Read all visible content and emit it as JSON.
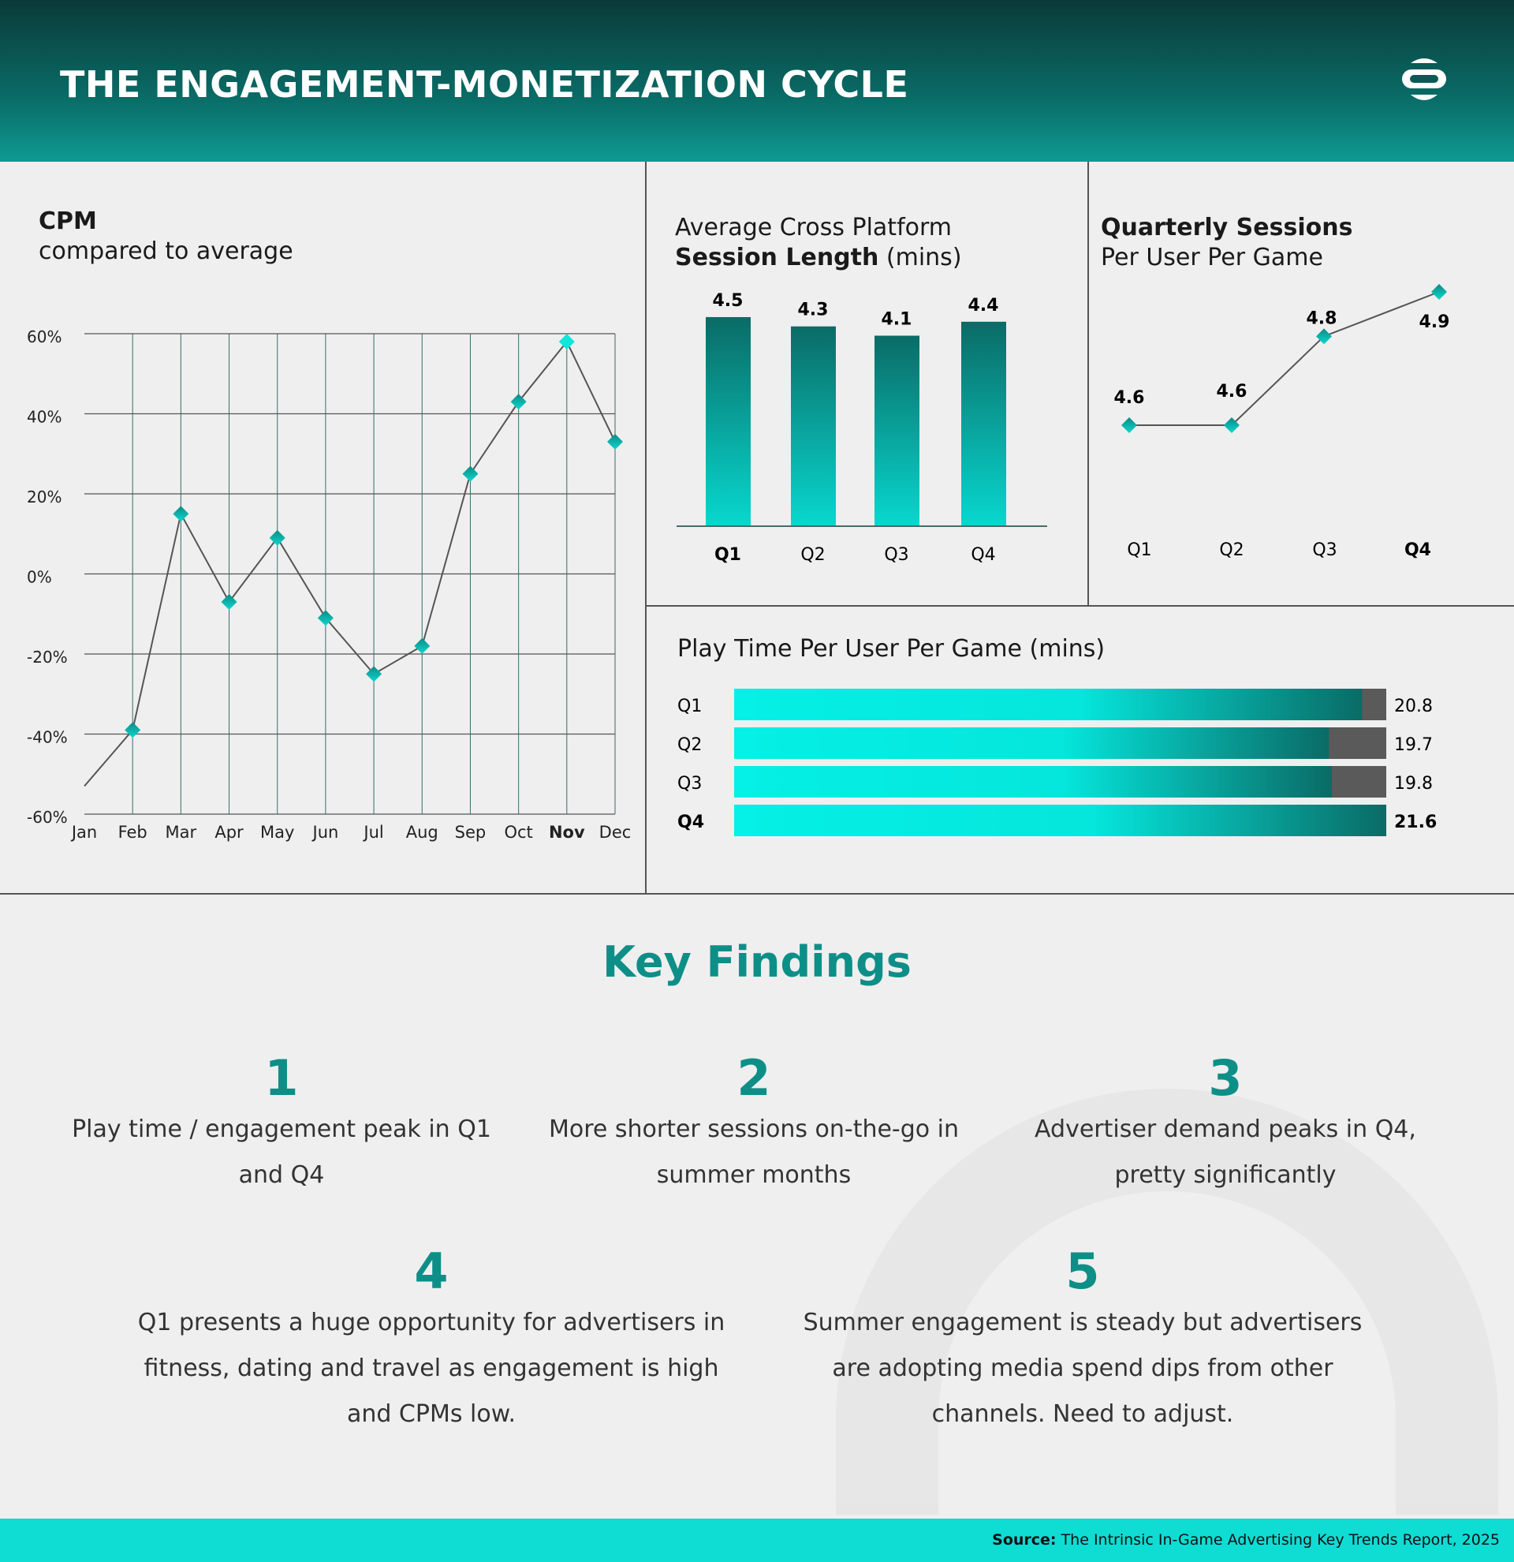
{
  "header": {
    "title": "THE ENGAGEMENT-MONETIZATION CYCLE",
    "logo_icon": "brand-logo-icon"
  },
  "colors": {
    "accent": "#0d8f88",
    "bar_light": "#05f0e6",
    "bar_dark": "#0a6b66",
    "track": "#5a5a5a",
    "header_dark": "#0a3a38"
  },
  "chart_data": [
    {
      "type": "line",
      "title": "CPM",
      "subtitle": "compared to average",
      "categories": [
        "Jan",
        "Feb",
        "Mar",
        "Apr",
        "May",
        "Jun",
        "Jul",
        "Aug",
        "Sep",
        "Oct",
        "Nov",
        "Dec"
      ],
      "values": [
        -53,
        -39,
        15,
        -7,
        9,
        -11,
        -25,
        -18,
        25,
        43,
        58,
        33
      ],
      "yticks": [
        "60%",
        "40%",
        "20%",
        "0%",
        "-20%",
        "-40%",
        "-60%"
      ],
      "ylim": [
        -60,
        60
      ],
      "highlight": "Nov",
      "grid": true
    },
    {
      "type": "bar",
      "title_plain": "Average Cross Platform",
      "title_bold": "Session Length",
      "title_unit": "(mins)",
      "categories": [
        "Q1",
        "Q2",
        "Q3",
        "Q4"
      ],
      "values": [
        4.5,
        4.3,
        4.1,
        4.4
      ],
      "labels": [
        "4.5",
        "4.3",
        "4.1",
        "4.4"
      ],
      "highlight": "Q1"
    },
    {
      "type": "line",
      "title_bold": "Quarterly Sessions",
      "title_plain": "Per User Per Game",
      "categories": [
        "Q1",
        "Q2",
        "Q3",
        "Q4"
      ],
      "values": [
        4.6,
        4.6,
        4.8,
        4.9
      ],
      "labels": [
        "4.6",
        "4.6",
        "4.8",
        "4.9"
      ],
      "highlight": "Q4"
    },
    {
      "type": "bar",
      "orientation": "horizontal",
      "title": "Play Time Per User Per Game (mins)",
      "categories": [
        "Q1",
        "Q2",
        "Q3",
        "Q4"
      ],
      "values": [
        20.8,
        19.7,
        19.8,
        21.6
      ],
      "labels": [
        "20.8",
        "19.7",
        "19.8",
        "21.6"
      ],
      "xmax": 21.6,
      "highlight": "Q4"
    }
  ],
  "findings": {
    "title": "Key Findings",
    "items": [
      {
        "num": "1",
        "text": "Play time / engagement peak in Q1 and Q4"
      },
      {
        "num": "2",
        "text": "More shorter sessions on-the-go in summer months"
      },
      {
        "num": "3",
        "text": "Advertiser demand peaks in Q4, pretty significantly"
      },
      {
        "num": "4",
        "text": "Q1 presents a huge opportunity for advertisers in fitness, dating and travel as engagement is high and CPMs low."
      },
      {
        "num": "5",
        "text": "Summer engagement is steady but advertisers are adopting media spend dips from other channels. Need to adjust."
      }
    ]
  },
  "footer": {
    "source_label": "Source:",
    "source_text": " The Intrinsic In-Game Advertising Key Trends Report, 2025"
  }
}
